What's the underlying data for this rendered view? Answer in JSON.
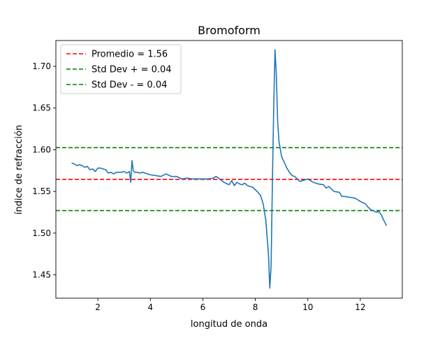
{
  "chart_data": {
    "type": "line",
    "title": "Bromoform",
    "xlabel": "longitud de onda",
    "ylabel": "índice de refracción",
    "xlim": [
      0.4,
      13.6
    ],
    "ylim": [
      1.422,
      1.731
    ],
    "xticks": [
      2,
      4,
      6,
      8,
      10,
      12
    ],
    "yticks": [
      1.45,
      1.5,
      1.55,
      1.6,
      1.65,
      1.7
    ],
    "ytick_labels": [
      "1.45",
      "1.50",
      "1.55",
      "1.60",
      "1.65",
      "1.70"
    ],
    "grid": false,
    "legend_position": "upper-left",
    "series": [
      {
        "color": "#1f77b4",
        "x": [
          1.0,
          1.1,
          1.2,
          1.3,
          1.4,
          1.5,
          1.6,
          1.7,
          1.8,
          1.9,
          2.0,
          2.1,
          2.2,
          2.3,
          2.4,
          2.5,
          2.6,
          2.7,
          2.8,
          2.9,
          3.0,
          3.1,
          3.2,
          3.25,
          3.3,
          3.35,
          3.4,
          3.5,
          3.6,
          3.7,
          3.8,
          3.9,
          4.0,
          4.2,
          4.4,
          4.6,
          4.8,
          5.0,
          5.2,
          5.4,
          5.6,
          5.8,
          6.0,
          6.2,
          6.4,
          6.5,
          6.6,
          6.8,
          7.0,
          7.1,
          7.2,
          7.3,
          7.4,
          7.5,
          7.6,
          7.7,
          7.8,
          7.9,
          8.0,
          8.1,
          8.2,
          8.3,
          8.4,
          8.5,
          8.55,
          8.6,
          8.65,
          8.7,
          8.75,
          8.8,
          8.85,
          8.9,
          9.0,
          9.1,
          9.2,
          9.3,
          9.4,
          9.5,
          9.6,
          9.7,
          9.8,
          9.9,
          10.0,
          10.2,
          10.4,
          10.6,
          10.7,
          10.8,
          11.0,
          11.2,
          11.3,
          11.4,
          11.6,
          11.8,
          12.0,
          12.2,
          12.3,
          12.4,
          12.5,
          12.6,
          12.7,
          12.8,
          12.9,
          13.0
        ],
        "values": [
          1.584,
          1.583,
          1.581,
          1.582,
          1.581,
          1.579,
          1.58,
          1.576,
          1.577,
          1.574,
          1.578,
          1.578,
          1.577,
          1.576,
          1.572,
          1.573,
          1.571,
          1.573,
          1.573,
          1.573,
          1.574,
          1.572,
          1.574,
          1.561,
          1.587,
          1.575,
          1.573,
          1.573,
          1.572,
          1.573,
          1.572,
          1.571,
          1.57,
          1.569,
          1.568,
          1.571,
          1.568,
          1.568,
          1.565,
          1.566,
          1.565,
          1.565,
          1.565,
          1.565,
          1.566,
          1.568,
          1.566,
          1.561,
          1.558,
          1.563,
          1.557,
          1.561,
          1.559,
          1.558,
          1.56,
          1.557,
          1.556,
          1.555,
          1.552,
          1.549,
          1.545,
          1.535,
          1.515,
          1.475,
          1.434,
          1.46,
          1.56,
          1.65,
          1.72,
          1.69,
          1.635,
          1.61,
          1.592,
          1.585,
          1.578,
          1.573,
          1.569,
          1.568,
          1.565,
          1.562,
          1.563,
          1.564,
          1.565,
          1.561,
          1.559,
          1.558,
          1.554,
          1.556,
          1.55,
          1.549,
          1.544,
          1.544,
          1.543,
          1.542,
          1.538,
          1.535,
          1.531,
          1.528,
          1.527,
          1.525,
          1.526,
          1.522,
          1.515,
          1.509
        ]
      }
    ],
    "reference_lines": [
      {
        "y": 1.5645,
        "color": "#ff0000",
        "label": "Promedio = 1.56"
      },
      {
        "y": 1.6025,
        "color": "#008000",
        "label": "Std Dev + = 0.04"
      },
      {
        "y": 1.527,
        "color": "#008000",
        "label": "Std Dev - = 0.04"
      }
    ]
  }
}
